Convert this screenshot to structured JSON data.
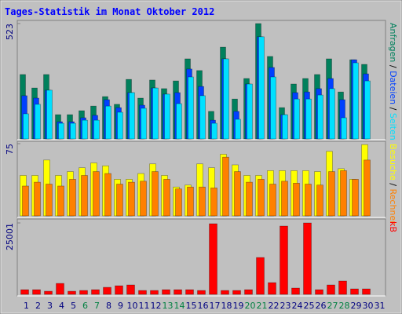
{
  "chart_data": {
    "type": "bar",
    "title": "Tages-Statistik im Monat Oktober 2012",
    "categories": [
      "1",
      "2",
      "3",
      "4",
      "5",
      "6",
      "7",
      "8",
      "9",
      "10",
      "11",
      "12",
      "13",
      "14",
      "15",
      "16",
      "17",
      "18",
      "19",
      "20",
      "21",
      "22",
      "23",
      "24",
      "25",
      "26",
      "27",
      "28",
      "29",
      "30",
      "31"
    ],
    "category_colors": [
      "#000080",
      "#000080",
      "#000080",
      "#000080",
      "#000080",
      "#008040",
      "#008040",
      "#000080",
      "#000080",
      "#000080",
      "#000080",
      "#000080",
      "#008040",
      "#008040",
      "#000080",
      "#000080",
      "#000080",
      "#000080",
      "#000080",
      "#008040",
      "#008040",
      "#000080",
      "#000080",
      "#000080",
      "#000080",
      "#000080",
      "#008040",
      "#008040",
      "#000080",
      "#000080",
      "#000080"
    ],
    "panels": [
      {
        "ylim": [
          0,
          523
        ],
        "yticks": [
          523
        ],
        "series": [
          {
            "name": "Anfragen",
            "color": "#00805c",
            "values": [
              292,
              231,
              292,
              110,
              110,
              128,
              149,
              192,
              157,
              270,
              185,
              267,
              228,
              263,
              363,
              310,
              125,
              416,
              181,
              274,
              523,
              374,
              142,
              249,
              274,
              292,
              363,
              213,
              359,
              338,
              0
            ]
          },
          {
            "name": "Dateien",
            "color": "#0040ff",
            "values": [
              196,
              185,
              221,
              78,
              78,
              96,
              107,
              178,
              142,
              210,
              153,
              231,
              203,
              210,
              317,
              238,
              85,
              363,
              125,
              249,
              463,
              324,
              110,
              210,
              213,
              228,
              274,
              178,
              359,
              295,
              0
            ]
          },
          {
            "name": "Seiten",
            "color": "#00e0ff",
            "values": [
              114,
              157,
              221,
              71,
              71,
              85,
              85,
              149,
              121,
              210,
              139,
              231,
              203,
              160,
              281,
              196,
              71,
              363,
              89,
              249,
              463,
              281,
              110,
              181,
              181,
              199,
              228,
              96,
              345,
              263,
              0
            ]
          }
        ]
      },
      {
        "ylim": [
          0,
          75
        ],
        "yticks": [
          75
        ],
        "series": [
          {
            "name": "Besuche",
            "color": "#ffff00",
            "values": [
              42,
              42,
              58,
              42,
              46,
              50,
              55,
              52,
              38,
              38,
              44,
              54,
              42,
              30,
              32,
              54,
              50,
              64,
              53,
              42,
              42,
              47,
              47,
              47,
              47,
              46,
              67,
              49,
              38,
              74,
              0
            ]
          },
          {
            "name": "Rechner",
            "color": "#ff8000",
            "values": [
              31,
              35,
              33,
              31,
              38,
              42,
              46,
              44,
              33,
              35,
              36,
              46,
              38,
              28,
              30,
              30,
              29,
              61,
              46,
              35,
              38,
              33,
              36,
              34,
              33,
              32,
              46,
              47,
              38,
              58,
              0
            ]
          }
        ]
      },
      {
        "ylim": [
          0,
          25001
        ],
        "yticks": [
          25001
        ],
        "series": [
          {
            "name": "kB",
            "color": "#ff0000",
            "values": [
              1648,
              1648,
              1099,
              3846,
              1099,
              1374,
              1648,
              2473,
              3022,
              3297,
              1374,
              1374,
              1648,
              1648,
              1648,
              1374,
              24727,
              1374,
              1374,
              1648,
              12913,
              4121,
              23902,
              2198,
              25001,
              1648,
              3297,
              4671,
              1923,
              1923,
              0
            ]
          }
        ]
      }
    ]
  }
}
